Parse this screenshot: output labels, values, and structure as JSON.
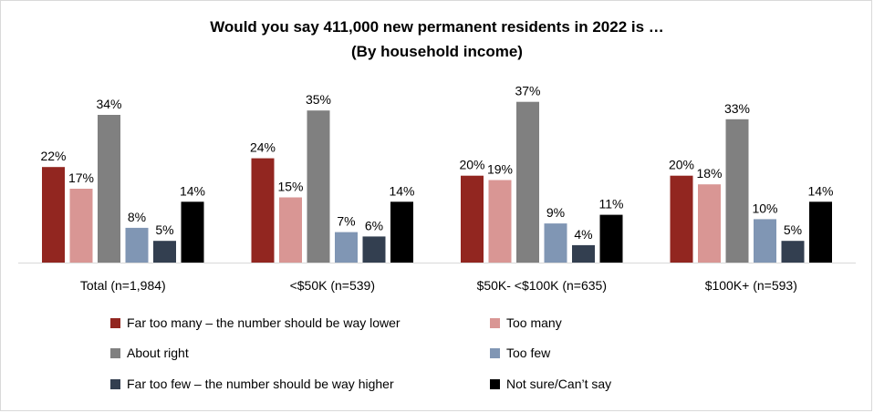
{
  "chart_data": {
    "type": "bar",
    "title_line1": "Would you say 411,000 new permanent residents in 2022 is …",
    "title_line2": "(By household income)",
    "xlabel": "",
    "ylabel": "",
    "ylim": [
      0,
      40
    ],
    "grid": false,
    "legend_position": "bottom",
    "categories": [
      "Total (n=1,984)",
      "<$50K (n=539)",
      "$50K- <$100K (n=635)",
      "$100K+ (n=593)"
    ],
    "series": [
      {
        "name": "Far too many – the number should be way lower",
        "color": "#922620",
        "values": [
          22,
          24,
          20,
          20
        ],
        "labels": [
          "22%",
          "24%",
          "20%",
          "20%"
        ]
      },
      {
        "name": "Too many",
        "color": "#D99694",
        "values": [
          17,
          15,
          19,
          18
        ],
        "labels": [
          "17%",
          "15%",
          "19%",
          "18%"
        ]
      },
      {
        "name": "About right",
        "color": "#808080",
        "values": [
          34,
          35,
          37,
          33
        ],
        "labels": [
          "34%",
          "35%",
          "37%",
          "33%"
        ]
      },
      {
        "name": "Too few",
        "color": "#8096B4",
        "values": [
          8,
          7,
          9,
          10
        ],
        "labels": [
          "8%",
          "7%",
          "9%",
          "10%"
        ]
      },
      {
        "name": "Far too few – the number should be way higher",
        "color": "#333F50",
        "values": [
          5,
          6,
          4,
          5
        ],
        "labels": [
          "5%",
          "6%",
          "4%",
          "5%"
        ]
      },
      {
        "name": "Not sure/Can’t say",
        "color": "#000000",
        "values": [
          14,
          14,
          11,
          14
        ],
        "labels": [
          "14%",
          "14%",
          "11%",
          "14%"
        ]
      }
    ]
  }
}
